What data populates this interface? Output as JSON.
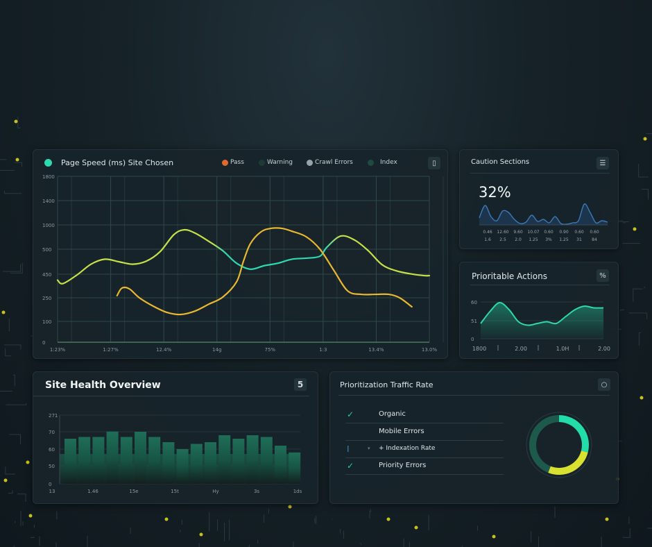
{
  "page_speed": {
    "title": "Page Speed (ms) Site Chosen",
    "legend": [
      {
        "label": "Pass",
        "color": "#e06a2c"
      },
      {
        "label": "Warning",
        "color": "#1e3a36"
      },
      {
        "label": "Crawl Errors",
        "color": "#9aa4a8"
      },
      {
        "label": "Index",
        "color": "#1e4a40"
      }
    ],
    "export_icon": "clipboard-icon"
  },
  "chart_data": [
    {
      "type": "line",
      "title": "Page Speed (ms) Site Chosen",
      "y_ticks": [
        "1800",
        "1400",
        "1000",
        "500",
        "450",
        "250",
        "100",
        "0"
      ],
      "x_ticks": [
        "1:23%",
        "1:27%",
        "12.4%",
        "14g",
        "75%",
        "1:3",
        "13.4%",
        "13.0%"
      ],
      "grid": true,
      "legend_position": "top-right",
      "series": [
        {
          "color": "#c6e04a",
          "accent_color": "#2ed8b0",
          "x": [
            0,
            0.1,
            0.37,
            0.63,
            0.89,
            1.15,
            1.41,
            1.67,
            1.93,
            2.19,
            2.39,
            2.59,
            2.85,
            3.11,
            3.37,
            3.63,
            3.89,
            4.15,
            4.41,
            4.68,
            4.94,
            5.07,
            5.33,
            5.59,
            5.85,
            6.11,
            6.37,
            6.63,
            6.9,
            7
          ],
          "y": [
            400,
            370,
            445,
            470,
            480,
            475,
            470,
            476,
            495,
            800,
            900,
            830,
            660,
            497,
            472,
            460,
            467,
            472,
            480,
            482,
            486,
            540,
            770,
            690,
            497,
            469,
            457,
            451,
            438,
            438
          ]
        },
        {
          "color": "#e8b830",
          "x": [
            1.12,
            1.21,
            1.35,
            1.54,
            1.8,
            2.06,
            2.32,
            2.59,
            2.85,
            3.11,
            3.37,
            3.5,
            3.63,
            3.83,
            4.02,
            4.22,
            4.41,
            4.68,
            4.94,
            5.2,
            5.46,
            5.72,
            5.98,
            6.24,
            6.44,
            6.67
          ],
          "y": [
            268,
            332,
            326,
            250,
            197,
            157,
            144,
            166,
            210,
            256,
            385,
            476,
            614,
            857,
            929,
            929,
            871,
            757,
            500,
            458,
            309,
            279,
            279,
            279,
            250,
            193
          ]
        }
      ]
    },
    {
      "type": "area",
      "title": "Caution Sections",
      "values": [
        10,
        28,
        12,
        6,
        20,
        18,
        8,
        2,
        4,
        14,
        5,
        8,
        3,
        12,
        2,
        1,
        3,
        6,
        30,
        18,
        3,
        6,
        4
      ],
      "x_ticks_row1": [
        "0.46",
        "12.60",
        "9.60",
        "10.07",
        "0.60",
        "0.90",
        "0.60",
        "0.60"
      ],
      "x_ticks_row2": [
        "1.6",
        "2.5",
        "2.0",
        "1.25",
        "3%",
        "1.25",
        "31",
        "84"
      ]
    },
    {
      "type": "area",
      "title": "Prioritable Actions",
      "y_ticks": [
        "60",
        "51",
        "0"
      ],
      "x_ticks": [
        "1800",
        "2.00",
        "1.0H",
        "2.00"
      ],
      "values": [
        50,
        57,
        62,
        58,
        51,
        49,
        50,
        51,
        50,
        54,
        58,
        60,
        59,
        59
      ]
    },
    {
      "type": "bar",
      "title": "Site Health Overview",
      "y_ticks": [
        "271",
        "70",
        "60",
        "50",
        "0"
      ],
      "x_ticks": [
        "13",
        "1.46",
        "15e",
        "15t",
        "Hy",
        "3s",
        "1ds"
      ],
      "values": [
        66,
        67,
        67,
        73,
        67,
        70,
        67,
        64,
        60,
        63,
        64,
        68,
        66,
        68,
        67,
        62,
        58
      ]
    },
    {
      "type": "pie",
      "title": "Prioritization Traffic Rate",
      "values": [
        29,
        27,
        44
      ],
      "colors": [
        "#22dcaa",
        "#d8e030",
        "#1d5a4c"
      ]
    }
  ],
  "caution": {
    "title": "Caution Sections",
    "value": "32%",
    "menu_icon": "menu-icon"
  },
  "actions": {
    "title": "Prioritable Actions",
    "badge": "%"
  },
  "health": {
    "title": "Site Health Overview",
    "badge": "5"
  },
  "traffic": {
    "title": "Prioritization Traffic Rate",
    "items": [
      {
        "label": "Organic",
        "icon": "check-icon"
      },
      {
        "label": "Mobile Errors",
        "icon": ""
      },
      {
        "label": "+ Indexation Rate",
        "icon": "pin-icon"
      },
      {
        "label": "Priority Errors",
        "icon": "check-icon"
      }
    ]
  }
}
